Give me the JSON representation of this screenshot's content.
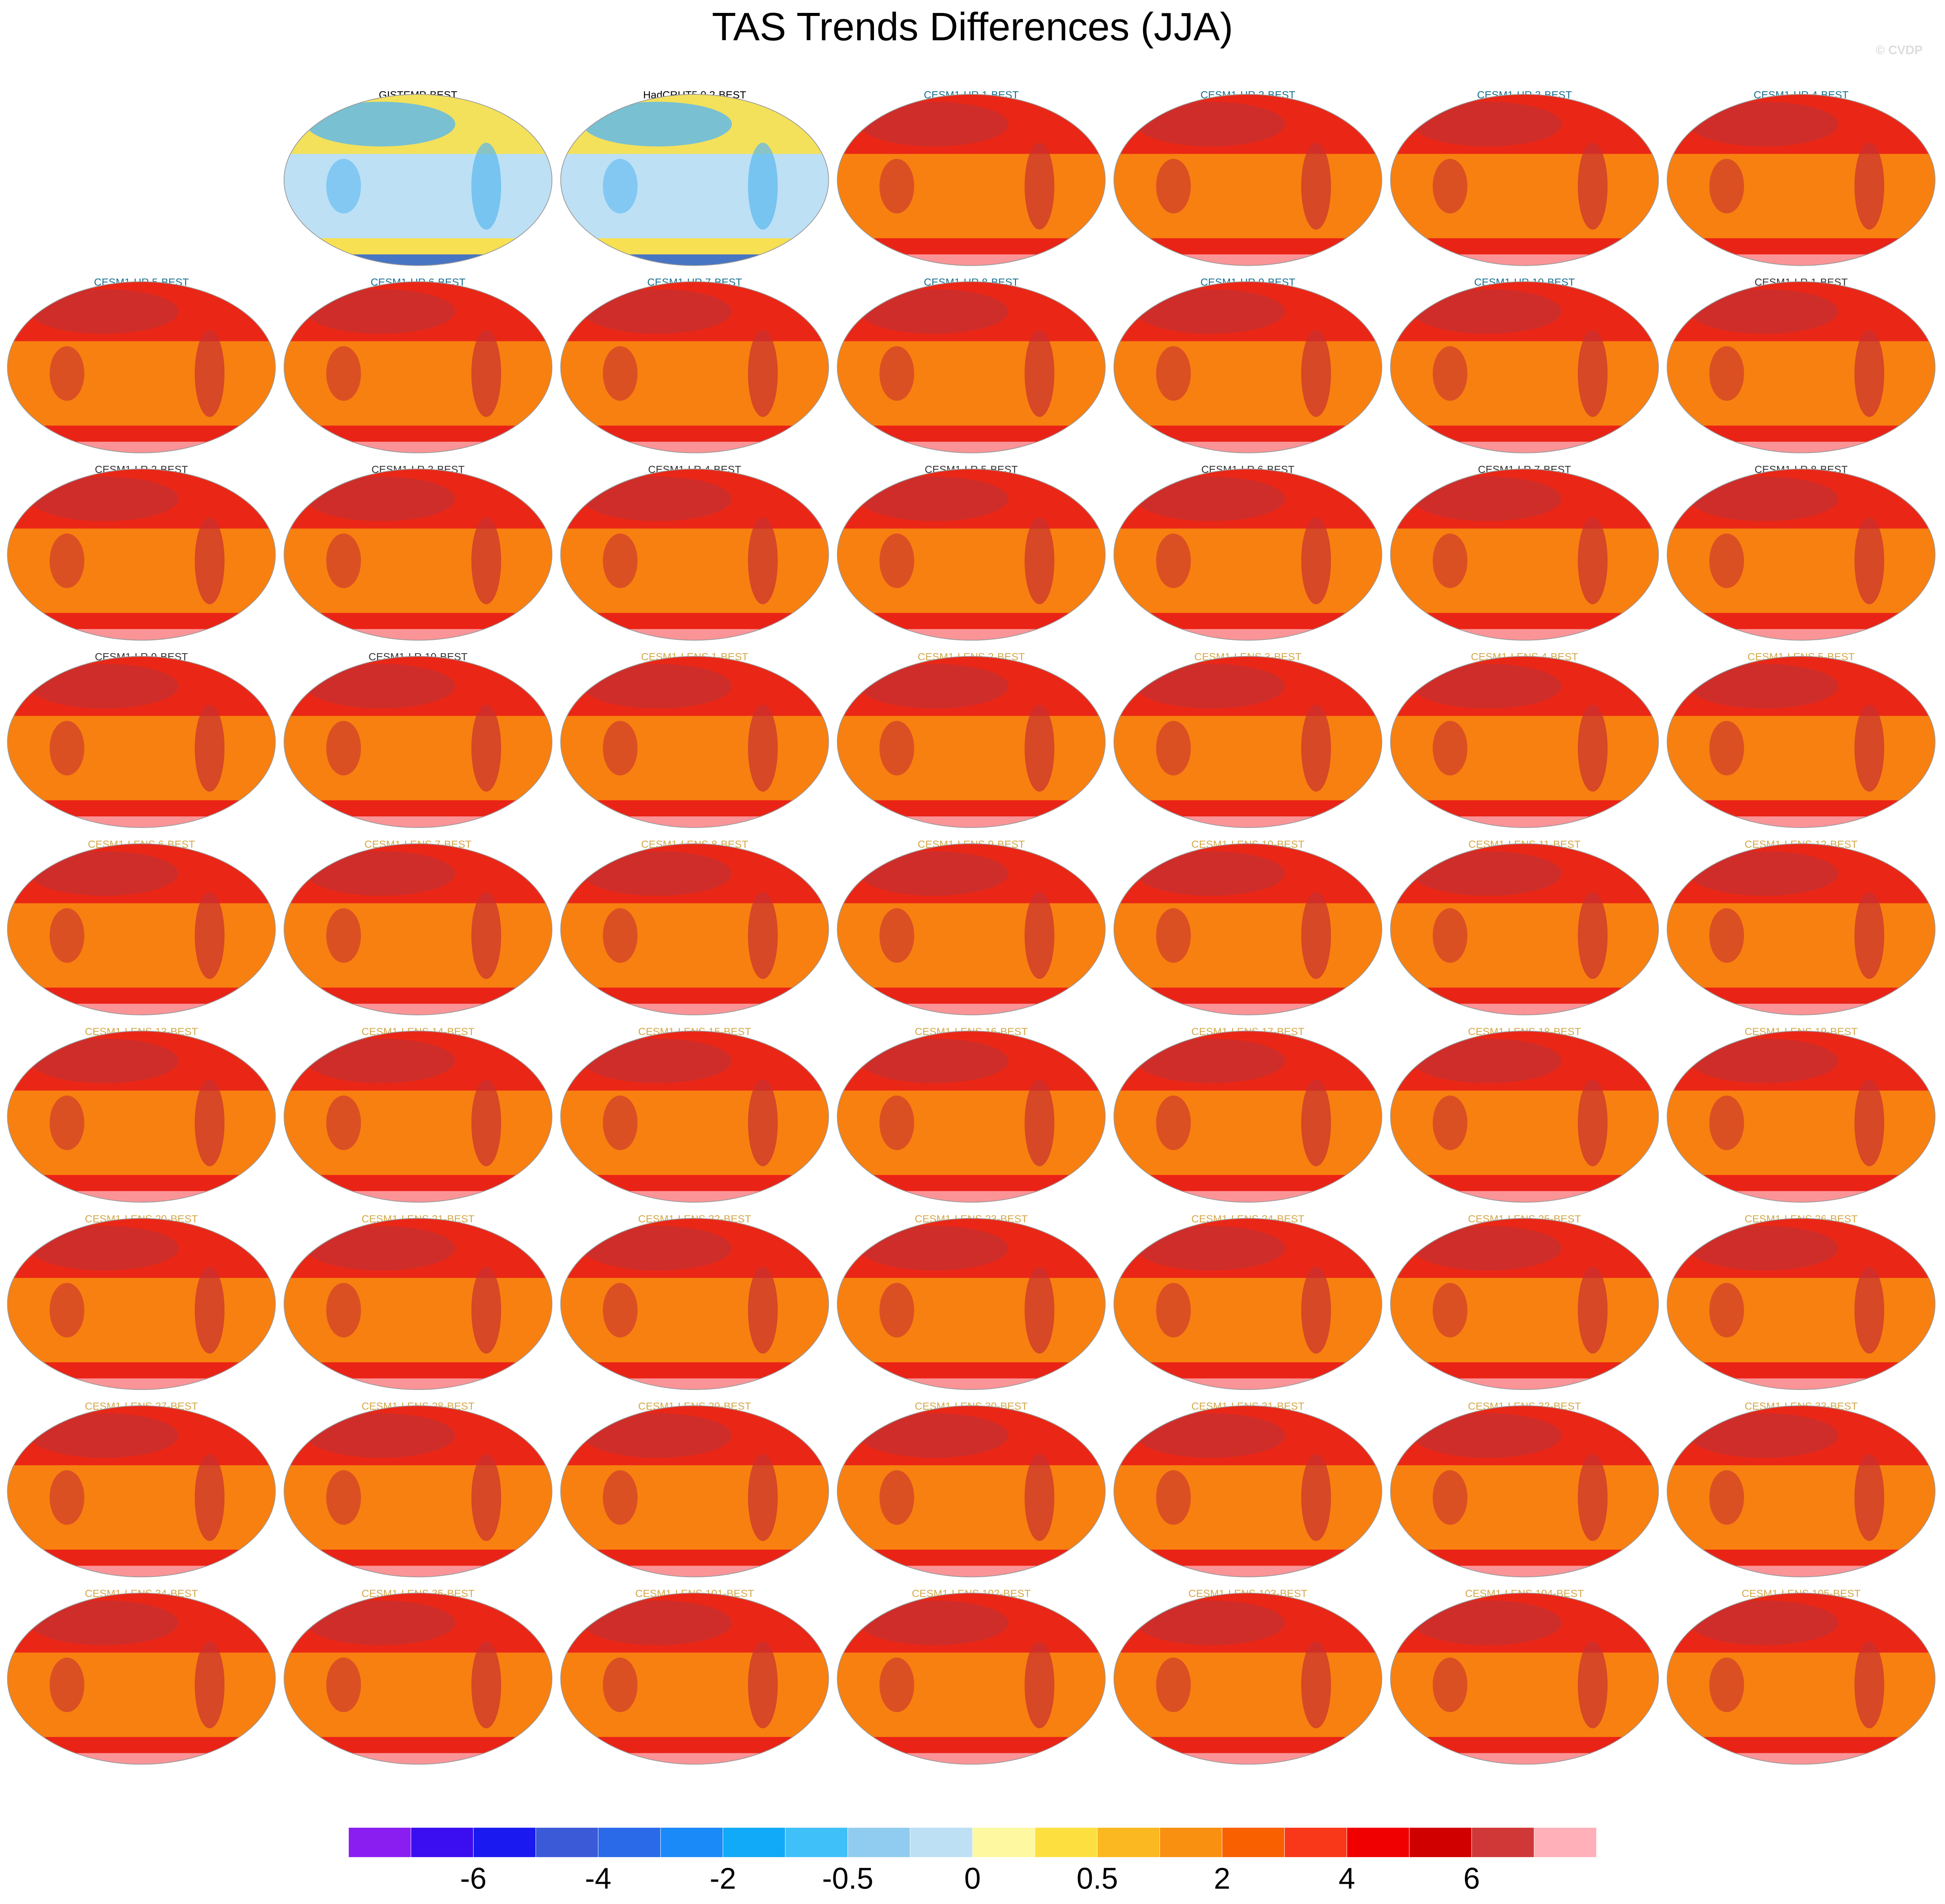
{
  "title": "TAS Trends Differences (JJA)",
  "watermark": "© CVDP",
  "panel_groups": [
    {
      "title_color": "#000000",
      "map_color": "#bde0f5",
      "titles": [
        "GISTEMP-BEST",
        "HadCRUT5.0.2-BEST"
      ]
    },
    {
      "title_color": "#1a6e8e",
      "map_color": "#f88010",
      "titles": [
        "CESM1-HR 1-BEST",
        "CESM1-HR 2-BEST",
        "CESM1-HR 3-BEST",
        "CESM1-HR 4-BEST",
        "CESM1-HR 5-BEST",
        "CESM1-HR 6-BEST",
        "CESM1-HR 7-BEST",
        "CESM1-HR 8-BEST",
        "CESM1-HR 9-BEST",
        "CESM1-HR 10-BEST"
      ]
    },
    {
      "title_color": "#333333",
      "map_color": "#f88010",
      "titles": [
        "CESM1-LR 1-BEST",
        "CESM1-LR 2-BEST",
        "CESM1-LR 3-BEST",
        "CESM1-LR 4-BEST",
        "CESM1-LR 5-BEST",
        "CESM1-LR 6-BEST",
        "CESM1-LR 7-BEST",
        "CESM1-LR 8-BEST",
        "CESM1-LR 9-BEST",
        "CESM1-LR 10-BEST"
      ]
    },
    {
      "title_color": "#d4a84a",
      "map_color": "#f88010",
      "titles": [
        "CESM1-LENS 1-BEST",
        "CESM1-LENS 2-BEST",
        "CESM1-LENS 3-BEST",
        "CESM1-LENS 4-BEST",
        "CESM1-LENS 5-BEST",
        "CESM1-LENS 6-BEST",
        "CESM1-LENS 7-BEST",
        "CESM1-LENS 8-BEST",
        "CESM1-LENS 9-BEST",
        "CESM1-LENS 10-BEST",
        "CESM1-LENS 11-BEST",
        "CESM1-LENS 12-BEST",
        "CESM1-LENS 13-BEST",
        "CESM1-LENS 14-BEST",
        "CESM1-LENS 15-BEST",
        "CESM1-LENS 16-BEST",
        "CESM1-LENS 17-BEST",
        "CESM1-LENS 18-BEST",
        "CESM1-LENS 19-BEST",
        "CESM1-LENS 20-BEST",
        "CESM1-LENS 21-BEST",
        "CESM1-LENS 22-BEST",
        "CESM1-LENS 23-BEST",
        "CESM1-LENS 24-BEST",
        "CESM1-LENS 25-BEST",
        "CESM1-LENS 26-BEST",
        "CESM1-LENS 27-BEST",
        "CESM1-LENS 28-BEST",
        "CESM1-LENS 29-BEST",
        "CESM1-LENS 30-BEST",
        "CESM1-LENS 31-BEST",
        "CESM1-LENS 32-BEST",
        "CESM1-LENS 33-BEST",
        "CESM1-LENS 34-BEST",
        "CESM1-LENS 35-BEST",
        "CESM1-LENS 101-BEST",
        "CESM1-LENS 102-BEST",
        "CESM1-LENS 103-BEST",
        "CESM1-LENS 104-BEST",
        "CESM1-LENS 105-BEST"
      ]
    }
  ],
  "colorbar": {
    "colors": [
      "#8a1ef0",
      "#3a0ef0",
      "#1a1af0",
      "#3a5ad8",
      "#2a6ae8",
      "#1a8af8",
      "#10aaf8",
      "#40c0f8",
      "#90ccf0",
      "#bde0f5",
      "#fef8a0",
      "#fde040",
      "#fbb820",
      "#f99010",
      "#f86000",
      "#f83818",
      "#f00000",
      "#d00000",
      "#d03838",
      "#ffb0b8"
    ],
    "labels": [
      -6,
      -4,
      -2,
      -0.5,
      0,
      0.5,
      2,
      4,
      6
    ]
  }
}
